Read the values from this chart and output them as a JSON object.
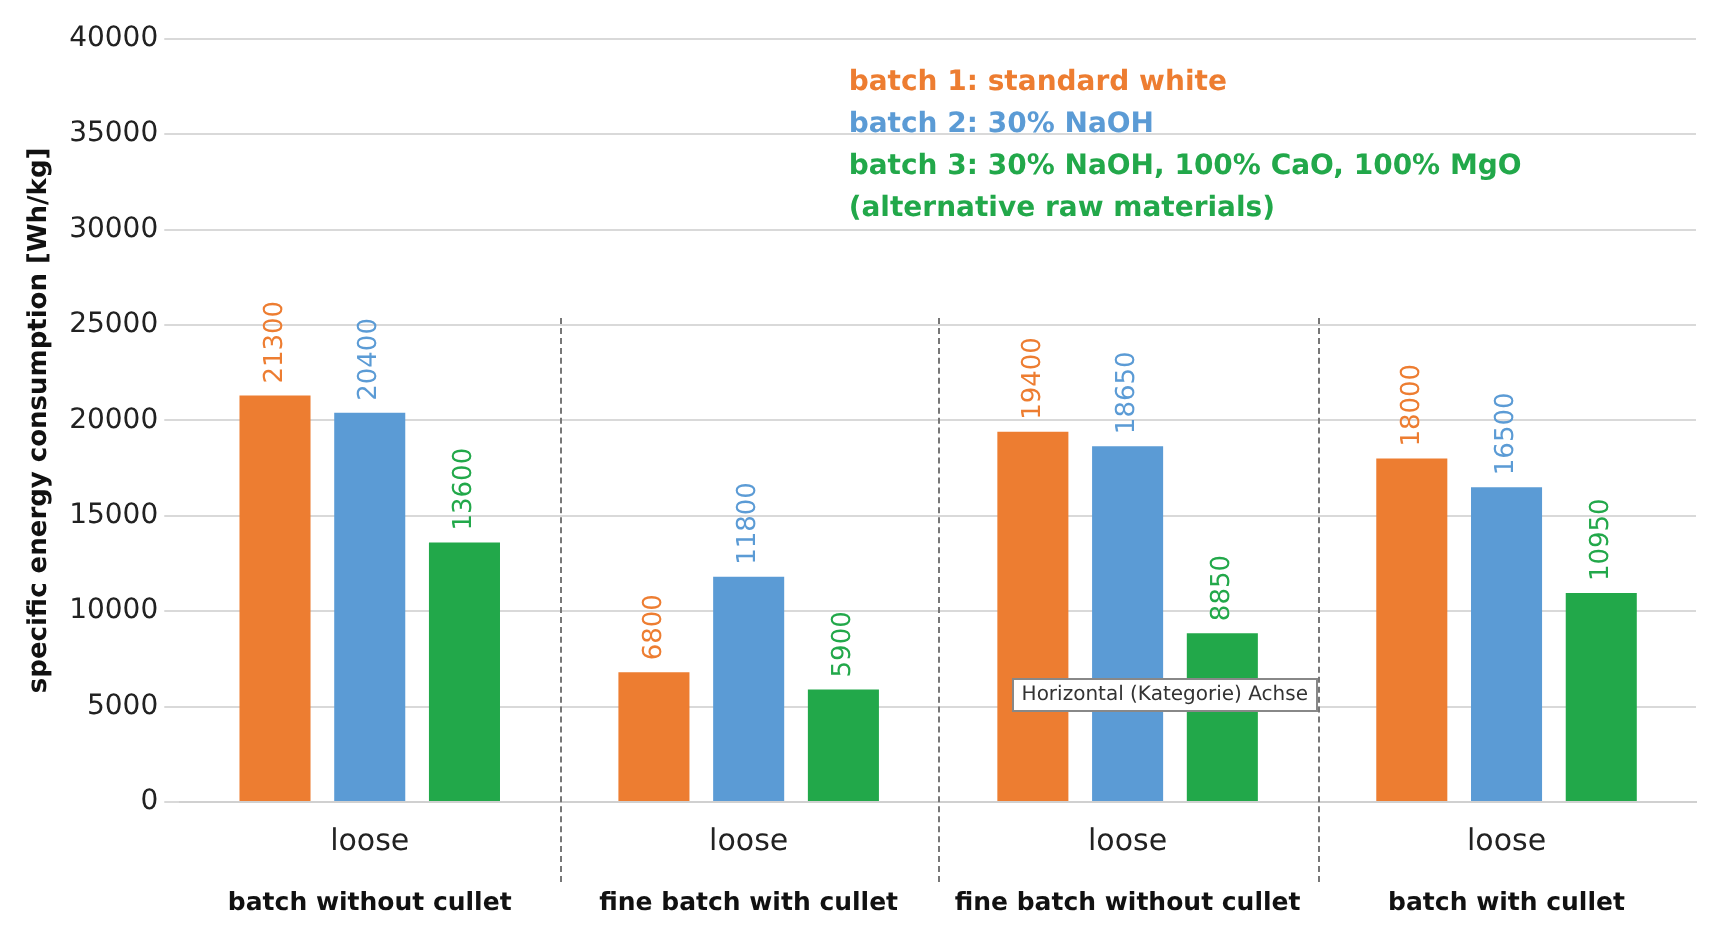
{
  "chart_data": {
    "type": "bar",
    "categories": [
      "loose",
      "loose",
      "loose",
      "loose"
    ],
    "ylabel": "specific energy consumption [Wh/kg]",
    "series": [
      {
        "name": "batch 1: standard white",
        "color": "#ed7d31",
        "values": [
          21300,
          6800,
          19400,
          18000
        ]
      },
      {
        "name": "batch 2: 30% NaOH",
        "color": "#5b9bd5",
        "values": [
          20400,
          11800,
          18650,
          16500
        ]
      },
      {
        "name": "batch 3: 30% NaOH, 100% CaO, 100% MgO (alternative raw materials)",
        "color": "#22a84a",
        "values": [
          13600,
          5900,
          8850,
          10950
        ]
      }
    ],
    "ylim": [
      0,
      40000
    ],
    "yticks": [
      0,
      5000,
      10000,
      15000,
      20000,
      25000,
      30000,
      35000,
      40000
    ],
    "grid": "y",
    "legend": "top",
    "data_labels": true,
    "annotations": [
      "batch without cullet",
      "fine batch with cullet",
      "fine batch without cullet",
      "batch with cullet",
      "Horizontal (Kategorie) Achse"
    ]
  }
}
